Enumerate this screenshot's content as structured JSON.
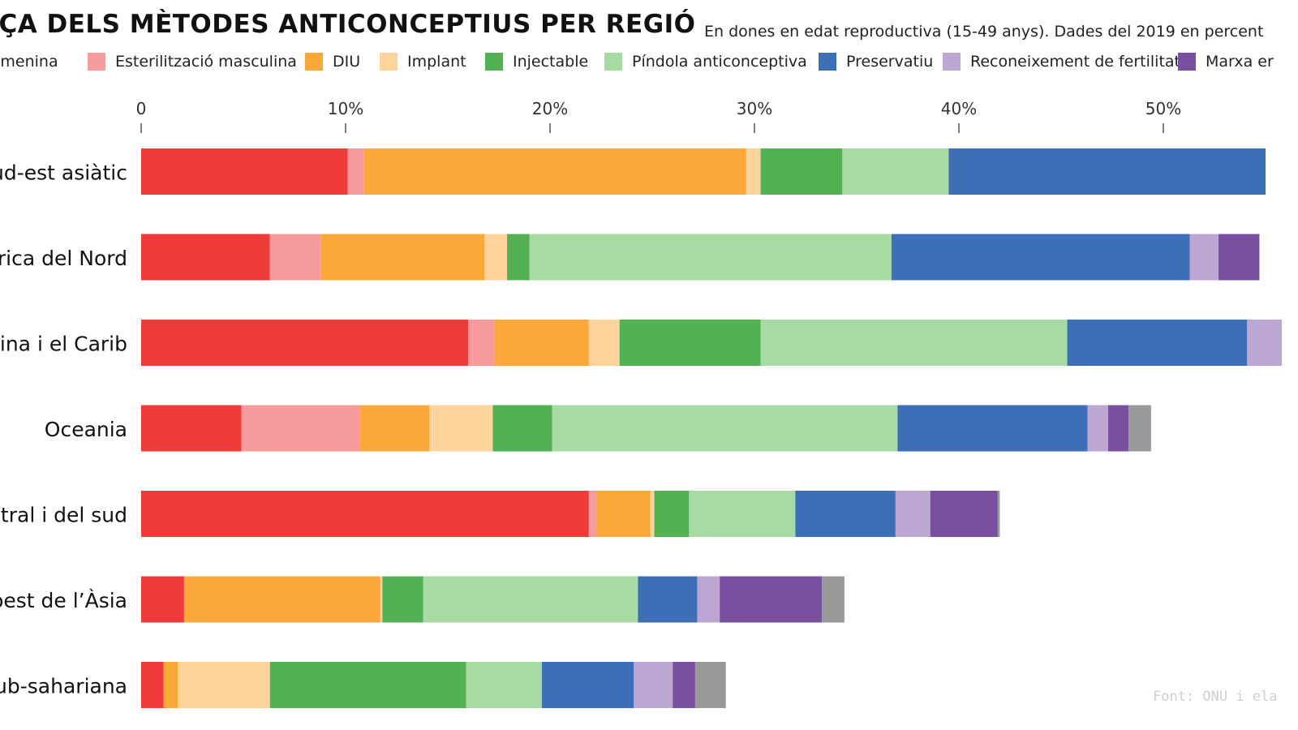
{
  "header": {
    "title": "NÇA DELS MÈTODES ANTICONCEPTIUS PER REGIÓ",
    "subtitle": "En dones en edat reproductiva (15-49 anys). Dades del 2019 en percent"
  },
  "source": "Font: ONU i ela",
  "colors": {
    "esterilitzacio_femenina": "#f03b3b",
    "esterilitzacio_masculina": "#f79c9c",
    "diu": "#faa83a",
    "implant": "#fdd49b",
    "injectable": "#52b153",
    "pindola": "#a8dba4",
    "preservatiu": "#3d6fb6",
    "fertilitat": "#bca7d3",
    "marxa": "#7a4f9f",
    "altres": "#999999"
  },
  "legend": [
    {
      "label": "femenina",
      "key": "esterilitzacio_femenina",
      "show_swatch": false
    },
    {
      "label": "Esterilització masculina",
      "key": "esterilitzacio_masculina",
      "show_swatch": true
    },
    {
      "label": "DIU",
      "key": "diu",
      "show_swatch": true
    },
    {
      "label": "Implant",
      "key": "implant",
      "show_swatch": true
    },
    {
      "label": "Injectable",
      "key": "injectable",
      "show_swatch": true
    },
    {
      "label": "Píndola anticonceptiva",
      "key": "pindola",
      "show_swatch": true
    },
    {
      "label": "Preservatiu",
      "key": "preservatiu",
      "show_swatch": true
    },
    {
      "label": "Reconeixement de fertilitat",
      "key": "fertilitat",
      "show_swatch": true
    },
    {
      "label": "Marxa er",
      "key": "marxa",
      "show_swatch": true
    }
  ],
  "chart_data": {
    "type": "bar",
    "orientation": "horizontal",
    "stacked": true,
    "x_unit": "%",
    "xlim": [
      0,
      55
    ],
    "x_ticks": [
      0,
      10,
      20,
      30,
      40,
      50
    ],
    "x_tick_labels": [
      "0",
      "10%",
      "20%",
      "30%",
      "40%",
      "50%"
    ],
    "categories": [
      "i Sud-est asiàtic",
      "mèrica del Nord",
      "latina i el Carib",
      "Oceania",
      "central i del sud",
      "l i oest de l’Àsia",
      "a sub-sahariana"
    ],
    "series": [
      {
        "name": "femenina",
        "key": "esterilitzacio_femenina",
        "values": [
          10.1,
          6.3,
          16.0,
          4.9,
          21.9,
          2.1,
          1.1
        ]
      },
      {
        "name": "Esterilització masculina",
        "key": "esterilitzacio_masculina",
        "values": [
          0.8,
          2.5,
          1.3,
          5.8,
          0.4,
          0.0,
          0.0
        ]
      },
      {
        "name": "DIU",
        "key": "diu",
        "values": [
          18.7,
          8.0,
          4.6,
          3.4,
          2.6,
          9.6,
          0.7
        ]
      },
      {
        "name": "Implant",
        "key": "implant",
        "values": [
          0.7,
          1.1,
          1.5,
          3.1,
          0.2,
          0.1,
          4.5
        ]
      },
      {
        "name": "Injectable",
        "key": "injectable",
        "values": [
          4.0,
          1.1,
          6.9,
          2.9,
          1.7,
          2.0,
          9.6
        ]
      },
      {
        "name": "Píndola anticonceptiva",
        "key": "pindola",
        "values": [
          5.2,
          17.7,
          15.0,
          16.9,
          5.2,
          10.5,
          3.7
        ]
      },
      {
        "name": "Preservatiu",
        "key": "preservatiu",
        "values": [
          15.5,
          14.6,
          8.8,
          9.3,
          4.9,
          2.9,
          4.5
        ]
      },
      {
        "name": "Reconeixement de fertilitat",
        "key": "fertilitat",
        "values": [
          0.0,
          1.4,
          1.7,
          1.0,
          1.7,
          1.1,
          1.9
        ]
      },
      {
        "name": "Marxa er",
        "key": "marxa",
        "values": [
          0.0,
          2.0,
          0.0,
          1.0,
          3.3,
          5.0,
          1.1
        ]
      },
      {
        "name": "",
        "key": "altres",
        "values": [
          0.0,
          0.0,
          0.0,
          1.1,
          0.1,
          1.1,
          1.5
        ]
      }
    ],
    "grid": false,
    "legend_position": "top"
  }
}
